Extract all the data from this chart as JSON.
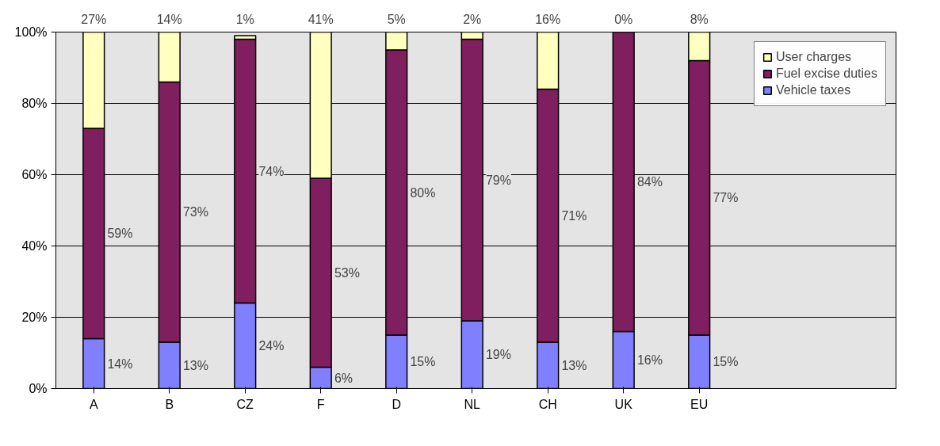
{
  "chart_data": {
    "type": "bar",
    "stacked": true,
    "categories": [
      "A",
      "B",
      "CZ",
      "F",
      "D",
      "NL",
      "CH",
      "UK",
      "EU"
    ],
    "series": [
      {
        "name": "Vehicle taxes",
        "color": "#8080ff",
        "values": [
          14,
          13,
          24,
          6,
          15,
          19,
          13,
          16,
          15
        ]
      },
      {
        "name": "Fuel excise duties",
        "color": "#7f1f5f",
        "values": [
          59,
          73,
          74,
          53,
          80,
          79,
          71,
          84,
          77
        ]
      },
      {
        "name": "User charges",
        "color": "#ffffc0",
        "values": [
          27,
          14,
          1,
          41,
          5,
          2,
          16,
          0,
          8
        ]
      }
    ],
    "ylim": [
      0,
      100
    ],
    "yticks": [
      {
        "value": 0,
        "label": "0%"
      },
      {
        "value": 20,
        "label": "20%"
      },
      {
        "value": 40,
        "label": "40%"
      },
      {
        "value": 60,
        "label": "60%"
      },
      {
        "value": 80,
        "label": "80%"
      },
      {
        "value": 100,
        "label": "100%"
      }
    ],
    "grid": "y",
    "legend": "top right",
    "value_labels": [
      [
        "14%",
        "13%",
        "24%",
        "6%",
        "15%",
        "19%",
        "13%",
        "16%",
        "15%"
      ],
      [
        "59%",
        "73%",
        "74%",
        "53%",
        "80%",
        "79%",
        "71%",
        "84%",
        "77%"
      ],
      [
        "27%",
        "14%",
        "1%",
        "41%",
        "5%",
        "2%",
        "16%",
        "0%",
        "8%"
      ]
    ]
  }
}
